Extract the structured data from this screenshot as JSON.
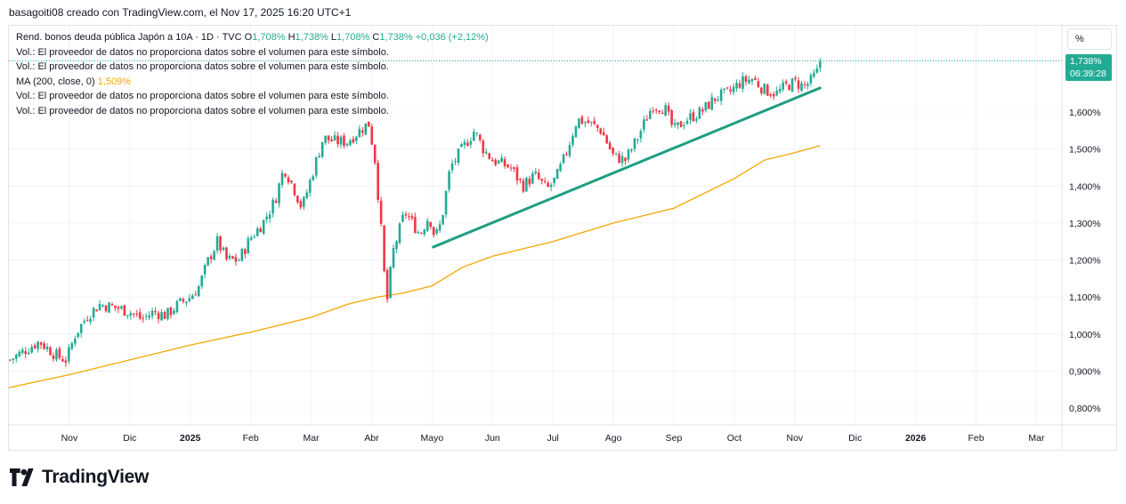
{
  "credit": "basagoiti08 creado con TradingView.com, el Nov 17, 2025 16:20 UTC+1",
  "legend": {
    "symbol": "Rend. bonos deuda pública Japón a 10A · 1D · TVC",
    "open_label": "O",
    "open": "1,708%",
    "high_label": "H",
    "high": "1,738%",
    "low_label": "L",
    "low": "1,708%",
    "close_label": "C",
    "close": "1,738%",
    "change": "+0,036 (+2,12%)",
    "vol_msg": "Vol.: El proveedor de datos no proporciona datos sobre el volumen para este símbolo.",
    "ma_label": "MA (200, close, 0)",
    "ma_value": "1,509%"
  },
  "price_scale": {
    "unit_button": "%",
    "last_price": "1,738%",
    "countdown": "06:39:28"
  },
  "brand": {
    "name": "TradingView"
  },
  "colors": {
    "up": "#22ab94",
    "down": "#f23645",
    "ma": "#f7a600",
    "trendline": "#1f9e82",
    "grid": "#f0f3fa"
  },
  "chart_data": {
    "type": "candlestick",
    "title": "Rend. bonos deuda pública Japón a 10A · 1D · TVC",
    "ylabel": "%",
    "ylim": [
      0.75,
      1.8
    ],
    "y_ticks": [
      0.8,
      0.9,
      1.0,
      1.1,
      1.2,
      1.3,
      1.4,
      1.5,
      1.6
    ],
    "y_tick_labels": [
      "0,800%",
      "0,900%",
      "1,000%",
      "1,100%",
      "1,200%",
      "1,300%",
      "1,400%",
      "1,500%",
      "1,600%"
    ],
    "x_start_month": 10,
    "x_ticks": [
      {
        "month": 11,
        "label": "Nov"
      },
      {
        "month": 12,
        "label": "Dic"
      },
      {
        "month": 13,
        "label": "2025"
      },
      {
        "month": 14,
        "label": "Feb"
      },
      {
        "month": 15,
        "label": "Mar"
      },
      {
        "month": 16,
        "label": "Abr"
      },
      {
        "month": 17,
        "label": "Mayo"
      },
      {
        "month": 18,
        "label": "Jun"
      },
      {
        "month": 19,
        "label": "Jul"
      },
      {
        "month": 20,
        "label": "Ago"
      },
      {
        "month": 21,
        "label": "Sep"
      },
      {
        "month": 22,
        "label": "Oct"
      },
      {
        "month": 23,
        "label": "Nov"
      },
      {
        "month": 24,
        "label": "Dic"
      },
      {
        "month": 25,
        "label": "2026"
      },
      {
        "month": 26,
        "label": "Feb"
      },
      {
        "month": 27,
        "label": "Mar"
      }
    ],
    "price_path": [
      [
        10.02,
        0.93
      ],
      [
        10.3,
        0.96
      ],
      [
        10.5,
        0.98
      ],
      [
        10.8,
        0.94
      ],
      [
        10.95,
        0.93
      ],
      [
        11.1,
        1.0
      ],
      [
        11.3,
        1.05
      ],
      [
        11.5,
        1.08
      ],
      [
        11.8,
        1.07
      ],
      [
        12.0,
        1.06
      ],
      [
        12.2,
        1.04
      ],
      [
        12.4,
        1.06
      ],
      [
        12.6,
        1.05
      ],
      [
        12.8,
        1.08
      ],
      [
        13.0,
        1.1
      ],
      [
        13.15,
        1.13
      ],
      [
        13.3,
        1.2
      ],
      [
        13.45,
        1.25
      ],
      [
        13.6,
        1.2
      ],
      [
        13.8,
        1.2
      ],
      [
        14.0,
        1.26
      ],
      [
        14.2,
        1.3
      ],
      [
        14.4,
        1.36
      ],
      [
        14.55,
        1.45
      ],
      [
        14.7,
        1.4
      ],
      [
        14.85,
        1.34
      ],
      [
        15.05,
        1.45
      ],
      [
        15.2,
        1.53
      ],
      [
        15.4,
        1.52
      ],
      [
        15.6,
        1.52
      ],
      [
        15.8,
        1.55
      ],
      [
        15.95,
        1.57
      ],
      [
        16.05,
        1.48
      ],
      [
        16.15,
        1.3
      ],
      [
        16.2,
        1.18
      ],
      [
        16.25,
        1.08
      ],
      [
        16.35,
        1.22
      ],
      [
        16.55,
        1.33
      ],
      [
        16.8,
        1.27
      ],
      [
        16.95,
        1.32
      ],
      [
        17.05,
        1.26
      ],
      [
        17.15,
        1.3
      ],
      [
        17.3,
        1.45
      ],
      [
        17.5,
        1.5
      ],
      [
        17.7,
        1.55
      ],
      [
        17.85,
        1.5
      ],
      [
        18.0,
        1.47
      ],
      [
        18.3,
        1.45
      ],
      [
        18.5,
        1.4
      ],
      [
        18.7,
        1.43
      ],
      [
        18.9,
        1.39
      ],
      [
        19.05,
        1.42
      ],
      [
        19.2,
        1.48
      ],
      [
        19.4,
        1.58
      ],
      [
        19.6,
        1.57
      ],
      [
        19.8,
        1.55
      ],
      [
        20.0,
        1.48
      ],
      [
        20.2,
        1.47
      ],
      [
        20.4,
        1.53
      ],
      [
        20.65,
        1.62
      ],
      [
        20.85,
        1.61
      ],
      [
        21.0,
        1.55
      ],
      [
        21.2,
        1.58
      ],
      [
        21.45,
        1.6
      ],
      [
        21.7,
        1.64
      ],
      [
        21.9,
        1.65
      ],
      [
        22.1,
        1.68
      ],
      [
        22.3,
        1.69
      ],
      [
        22.5,
        1.66
      ],
      [
        22.7,
        1.65
      ],
      [
        22.85,
        1.67
      ],
      [
        23.0,
        1.68
      ],
      [
        23.15,
        1.67
      ],
      [
        23.25,
        1.68
      ],
      [
        23.38,
        1.71
      ],
      [
        23.42,
        1.738
      ]
    ],
    "ma200_path": [
      [
        10.0,
        0.855
      ],
      [
        11.0,
        0.89
      ],
      [
        12.0,
        0.93
      ],
      [
        13.0,
        0.97
      ],
      [
        14.0,
        1.005
      ],
      [
        15.0,
        1.045
      ],
      [
        15.6,
        1.08
      ],
      [
        16.1,
        1.1
      ],
      [
        16.5,
        1.11
      ],
      [
        17.0,
        1.13
      ],
      [
        17.5,
        1.18
      ],
      [
        18.0,
        1.21
      ],
      [
        19.0,
        1.25
      ],
      [
        20.0,
        1.3
      ],
      [
        21.0,
        1.34
      ],
      [
        22.0,
        1.42
      ],
      [
        22.5,
        1.47
      ],
      [
        23.0,
        1.49
      ],
      [
        23.42,
        1.509
      ]
    ],
    "ma200_last": 1.509,
    "trendline": {
      "start": [
        17.02,
        1.235
      ],
      "end": [
        23.42,
        1.665
      ]
    },
    "last_value": 1.738
  }
}
